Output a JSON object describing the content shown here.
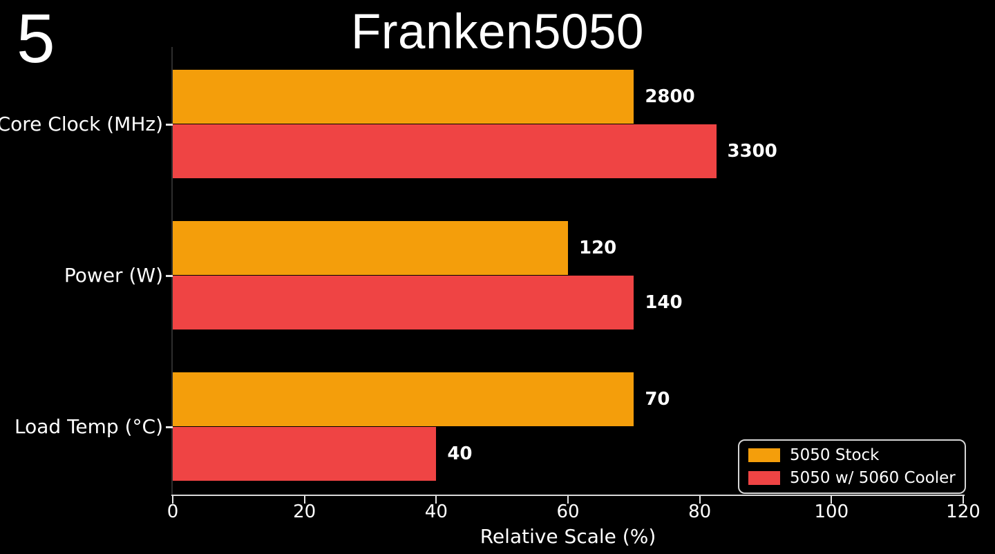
{
  "badge": "5",
  "chart_data": {
    "type": "bar",
    "orientation": "horizontal",
    "title": "Franken5050",
    "xlabel": "Relative Scale (%)",
    "xlim": [
      0,
      120
    ],
    "xticks": [
      0,
      20,
      40,
      60,
      80,
      100,
      120
    ],
    "grid": false,
    "background": "#000000",
    "text_color": "#ffffff",
    "categories": [
      "Core Clock (MHz)",
      "Power (W)",
      "Load Temp (°C)"
    ],
    "series": [
      {
        "name": "5050 Stock",
        "color": "#F49E0B",
        "values": [
          2800,
          120,
          70
        ],
        "bar_pct_of_scale": [
          70,
          60,
          70
        ]
      },
      {
        "name": "5050 w/ 5060 Cooler",
        "color": "#EF4444",
        "values": [
          3300,
          140,
          40
        ],
        "bar_pct_of_scale": [
          82.5,
          70,
          40
        ]
      }
    ],
    "legend": {
      "position": "lower-right",
      "entries": [
        "5050 Stock",
        "5050 w/ 5060 Cooler"
      ]
    }
  }
}
